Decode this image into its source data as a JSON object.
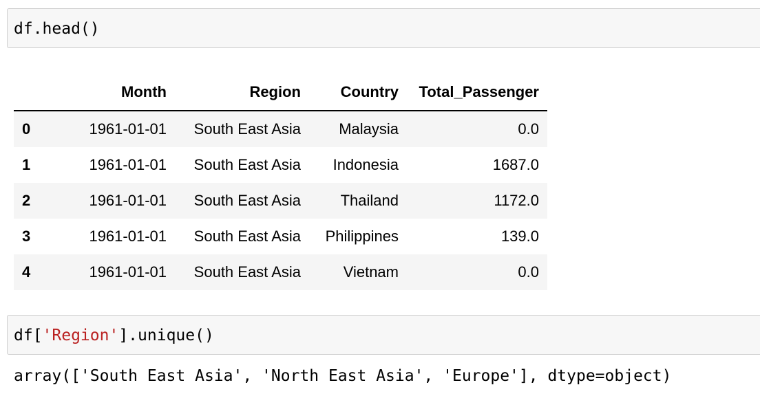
{
  "cells": [
    {
      "input": {
        "code": "df.head()"
      },
      "output": {
        "table": {
          "columns": [
            "Month",
            "Region",
            "Country",
            "Total_Passenger"
          ],
          "rows": [
            {
              "index": "0",
              "Month": "1961-01-01",
              "Region": "South East Asia",
              "Country": "Malaysia",
              "Total_Passenger": "0.0"
            },
            {
              "index": "1",
              "Month": "1961-01-01",
              "Region": "South East Asia",
              "Country": "Indonesia",
              "Total_Passenger": "1687.0"
            },
            {
              "index": "2",
              "Month": "1961-01-01",
              "Region": "South East Asia",
              "Country": "Thailand",
              "Total_Passenger": "1172.0"
            },
            {
              "index": "3",
              "Month": "1961-01-01",
              "Region": "South East Asia",
              "Country": "Philippines",
              "Total_Passenger": "139.0"
            },
            {
              "index": "4",
              "Month": "1961-01-01",
              "Region": "South East Asia",
              "Country": "Vietnam",
              "Total_Passenger": "0.0"
            }
          ]
        }
      }
    },
    {
      "input": {
        "code_prefix": "df[",
        "code_string": "'Region'",
        "code_suffix": "].unique()"
      },
      "output": {
        "text": "array(['South East Asia', 'North East Asia', 'Europe'], dtype=object)"
      }
    }
  ],
  "colors": {
    "cell_background": "#f7f7f7",
    "cell_border": "#cfcfcf",
    "string_token": "#ba2121",
    "striped_row": "#f5f5f5"
  }
}
